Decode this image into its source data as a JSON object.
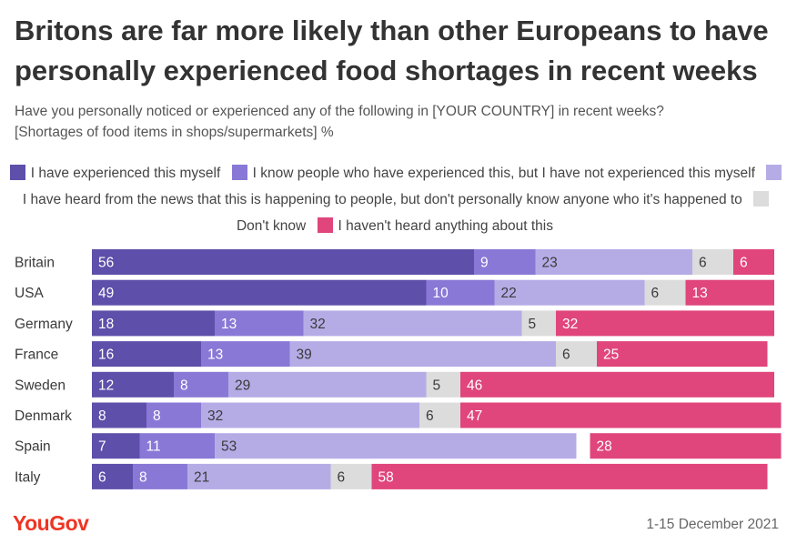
{
  "header": {
    "title": "Britons are far more likely than other Europeans to have personally experienced food shortages in recent weeks",
    "subtitle_line1": "Have you personally noticed or experienced any of the following in [YOUR COUNTRY] in recent weeks?",
    "subtitle_line2": "[Shortages of food items in shops/supermarkets] %"
  },
  "chart_data": {
    "type": "bar",
    "orientation": "horizontal",
    "stacked": true,
    "title": "Britons are far more likely than other Europeans to have personally experienced food shortages in recent weeks",
    "xlabel": "",
    "ylabel": "",
    "xlim": [
      0,
      100
    ],
    "grid": false,
    "legend_position": "top",
    "categories": [
      "Britain",
      "USA",
      "Germany",
      "France",
      "Sweden",
      "Denmark",
      "Spain",
      "Italy"
    ],
    "series": [
      {
        "name": "I have experienced this myself",
        "color": "#5e4faa",
        "label_color": "#ffffff",
        "values": [
          56,
          49,
          18,
          16,
          12,
          8,
          7,
          6
        ]
      },
      {
        "name": "I know people who have experienced this, but I have not experienced this myself",
        "color": "#8a78d6",
        "label_color": "#ffffff",
        "values": [
          9,
          10,
          13,
          13,
          8,
          8,
          11,
          8
        ]
      },
      {
        "name": "I have heard from the news that this is happening to people, but don't personally know anyone who it's happened to",
        "color": "#b5ace6",
        "label_color": "#3a3a3a",
        "values": [
          23,
          22,
          32,
          39,
          29,
          32,
          53,
          21
        ]
      },
      {
        "name": "Don't know",
        "color": "#dcdcdc",
        "label_color": "#3a3a3a",
        "values": [
          6,
          6,
          5,
          6,
          5,
          6,
          null,
          6
        ]
      },
      {
        "name": "I haven't heard anything about this",
        "color": "#e0457b",
        "label_color": "#ffffff",
        "values": [
          6,
          13,
          32,
          25,
          46,
          47,
          28,
          58
        ]
      }
    ]
  },
  "legend": {
    "items": [
      {
        "label": "I have experienced this myself",
        "color": "#5e4faa"
      },
      {
        "label": "I know people who have experienced this, but I have not experienced this myself",
        "color": "#8a78d6"
      },
      {
        "label": "I have heard from the news that this is happening to people, but don't personally know anyone who it's happened to",
        "color": "#b5ace6"
      },
      {
        "label": "Don't know",
        "color": "#dcdcdc"
      },
      {
        "label": "I haven't heard anything about this",
        "color": "#e0457b"
      }
    ]
  },
  "footer": {
    "logo": "YouGov",
    "date": "1-15 December 2021"
  }
}
